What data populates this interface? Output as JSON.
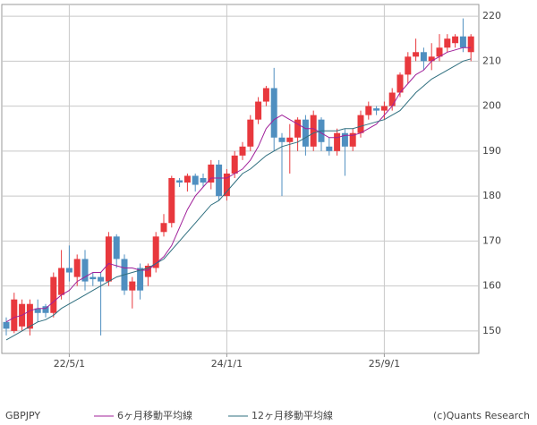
{
  "chart_data": {
    "type": "candlestick",
    "label": "GBPJPY",
    "credit": "(c)Quants Research",
    "categories": [
      null,
      null,
      null,
      null,
      null,
      null,
      null,
      null,
      "22/5/1",
      null,
      null,
      null,
      null,
      null,
      null,
      null,
      null,
      null,
      null,
      null,
      null,
      null,
      null,
      null,
      null,
      null,
      null,
      null,
      "24/1/1",
      null,
      null,
      null,
      null,
      null,
      null,
      null,
      null,
      null,
      null,
      null,
      null,
      null,
      null,
      null,
      null,
      null,
      null,
      null,
      "25/9/1",
      null,
      null,
      null,
      null,
      null,
      null,
      null,
      null,
      null,
      null,
      null
    ],
    "open": [
      152,
      150,
      151,
      150.5,
      155,
      155.5,
      154,
      158,
      164,
      162,
      166,
      162,
      162,
      161,
      171,
      166,
      159,
      164,
      162,
      164,
      172,
      174,
      183.5,
      183,
      184.5,
      184,
      183,
      187,
      180,
      185,
      189,
      191,
      197,
      201,
      204,
      193,
      192,
      193,
      197,
      191,
      197,
      191,
      190,
      194,
      191,
      194,
      198,
      199.5,
      199,
      200,
      203,
      207,
      211,
      212,
      210,
      211,
      213,
      214,
      215.5,
      212
    ],
    "high": [
      153,
      158.5,
      157,
      157,
      157,
      156,
      163,
      168,
      169,
      167,
      168,
      163,
      163,
      172,
      171.5,
      167,
      162,
      165,
      165,
      172,
      176,
      184.5,
      184,
      185,
      185,
      185,
      188,
      188,
      186,
      190,
      192,
      198,
      202,
      204.5,
      208.5,
      194,
      196,
      197.5,
      198,
      199,
      197.5,
      193,
      195,
      195,
      195,
      199,
      201,
      200,
      201,
      204,
      207.5,
      212,
      215,
      213,
      214,
      216,
      216,
      216,
      219.5,
      216
    ],
    "low": [
      149,
      149.5,
      150,
      149,
      152,
      153,
      153,
      157,
      161,
      160,
      159,
      160,
      149,
      160,
      164,
      158,
      155,
      157,
      160,
      163,
      171,
      173,
      182,
      181,
      181,
      182,
      181.5,
      179,
      179,
      184,
      188,
      190,
      196,
      200,
      190,
      180,
      185,
      190,
      189,
      190,
      190,
      189,
      189,
      184.5,
      190,
      193,
      197,
      198,
      197,
      199,
      202,
      205,
      210,
      208,
      208,
      210,
      212,
      213,
      212,
      210
    ],
    "close": [
      150.5,
      157,
      156,
      156,
      154,
      154,
      162,
      164,
      163,
      166,
      161,
      161.5,
      161,
      171,
      166,
      159,
      161,
      159,
      164.5,
      171,
      174,
      184,
      183,
      184.5,
      182.5,
      183,
      187,
      180,
      185,
      189,
      191,
      197,
      201,
      204,
      193,
      192,
      193,
      197,
      191,
      198,
      192,
      190,
      194,
      191,
      194,
      198,
      200,
      199,
      200,
      203,
      207,
      211,
      212,
      210,
      211,
      213,
      215,
      215.5,
      213,
      215.5
    ],
    "up_color": "#e8383d",
    "down_color": "#4f8fc0",
    "lines": [
      {
        "name": "6ヶ月移動平均線",
        "color": "#a0209a",
        "values": [
          152,
          153,
          153.5,
          154.5,
          155,
          155,
          156.5,
          158,
          159,
          161,
          162,
          163,
          163,
          165,
          164.5,
          164,
          164,
          163.5,
          163.5,
          165,
          166.5,
          169,
          173,
          177,
          180,
          182,
          184,
          184,
          184,
          185,
          186,
          188,
          191,
          195,
          197,
          198,
          197,
          196,
          195,
          195,
          194,
          193,
          193,
          193.5,
          193.5,
          194,
          195,
          196,
          198,
          200,
          203,
          205,
          207,
          208,
          210,
          211,
          212,
          212.5,
          213,
          213
        ]
      },
      {
        "name": "12ヶ月移動平均線",
        "color": "#2f6f7f",
        "values": [
          148,
          149,
          150,
          151,
          152,
          152.5,
          153.5,
          155,
          156,
          157,
          158,
          159,
          160,
          161,
          162,
          162.5,
          163,
          163.5,
          164,
          165,
          166,
          168,
          170,
          172,
          174,
          176,
          178,
          179,
          181,
          183,
          185,
          186,
          187.5,
          189,
          190,
          191,
          191.5,
          192,
          193,
          194,
          194.5,
          194.5,
          194.5,
          195,
          195,
          195.5,
          196,
          196.5,
          197,
          198,
          199,
          201,
          203,
          204.5,
          206,
          207,
          208,
          209,
          210,
          210.5
        ]
      }
    ],
    "ylim": [
      145,
      222.6
    ],
    "yticks": [
      150,
      160,
      170,
      180,
      190,
      200,
      210,
      220
    ],
    "grid": true
  }
}
